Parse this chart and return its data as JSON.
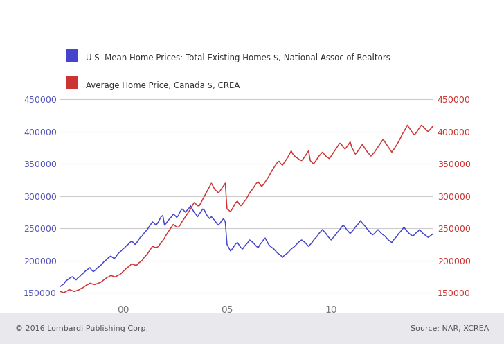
{
  "legend_us": "U.S. Mean Home Prices: Total Existing Homes $, National Assoc of Realtors",
  "legend_canada": "Average Home Price, Canada $, CREA",
  "footer_left": "© 2016 Lombardi Publishing Corp.",
  "footer_right": "Source: NAR, XCREA",
  "us_color": "#4444cc",
  "canada_color": "#cc3333",
  "background_color": "#ffffff",
  "footer_bg_color": "#e8e8ed",
  "grid_color": "#cccccc",
  "ylim": [
    140000,
    460000
  ],
  "yticks": [
    150000,
    200000,
    250000,
    300000,
    350000,
    400000,
    450000
  ],
  "left_tick_color": "#5555bb",
  "right_tick_color": "#cc3333",
  "xtick_labels": [
    "00",
    "05",
    "10"
  ],
  "xtick_positions": [
    36,
    96,
    156
  ],
  "us_data": [
    160000,
    162000,
    164000,
    168000,
    170000,
    172000,
    174000,
    175000,
    172000,
    170000,
    173000,
    175000,
    178000,
    180000,
    183000,
    185000,
    187000,
    189000,
    185000,
    183000,
    185000,
    188000,
    190000,
    192000,
    195000,
    198000,
    200000,
    203000,
    205000,
    207000,
    205000,
    203000,
    206000,
    210000,
    213000,
    215000,
    218000,
    220000,
    223000,
    225000,
    228000,
    230000,
    228000,
    225000,
    228000,
    232000,
    236000,
    238000,
    242000,
    245000,
    248000,
    252000,
    256000,
    260000,
    258000,
    255000,
    258000,
    263000,
    268000,
    270000,
    255000,
    258000,
    262000,
    265000,
    268000,
    272000,
    270000,
    267000,
    270000,
    276000,
    280000,
    278000,
    275000,
    278000,
    281000,
    285000,
    280000,
    275000,
    272000,
    268000,
    272000,
    276000,
    280000,
    278000,
    272000,
    268000,
    265000,
    268000,
    265000,
    262000,
    258000,
    255000,
    258000,
    262000,
    265000,
    260000,
    225000,
    220000,
    215000,
    218000,
    222000,
    226000,
    228000,
    224000,
    220000,
    218000,
    222000,
    225000,
    228000,
    232000,
    230000,
    228000,
    225000,
    222000,
    220000,
    225000,
    228000,
    232000,
    235000,
    230000,
    225000,
    222000,
    220000,
    218000,
    215000,
    212000,
    210000,
    208000,
    205000,
    208000,
    210000,
    212000,
    215000,
    218000,
    220000,
    222000,
    225000,
    228000,
    230000,
    232000,
    230000,
    228000,
    225000,
    222000,
    225000,
    228000,
    232000,
    235000,
    238000,
    242000,
    245000,
    248000,
    245000,
    242000,
    238000,
    235000,
    232000,
    235000,
    238000,
    242000,
    245000,
    248000,
    252000,
    255000,
    252000,
    248000,
    245000,
    242000,
    245000,
    248000,
    252000,
    255000,
    258000,
    262000,
    258000,
    255000,
    252000,
    248000,
    245000,
    242000,
    240000,
    242000,
    245000,
    248000,
    245000,
    242000,
    240000,
    238000,
    235000,
    232000,
    230000,
    228000,
    232000,
    235000,
    238000,
    242000,
    245000,
    248000,
    252000,
    248000,
    245000,
    242000,
    240000,
    238000,
    240000,
    243000,
    245000,
    248000,
    245000,
    242000,
    240000,
    238000,
    236000,
    238000,
    240000,
    242000
  ],
  "canada_data": [
    152000,
    151000,
    150000,
    152000,
    153000,
    155000,
    154000,
    153000,
    152000,
    153000,
    154000,
    155000,
    157000,
    158000,
    160000,
    162000,
    163000,
    165000,
    164000,
    163000,
    163000,
    164000,
    165000,
    166000,
    168000,
    170000,
    172000,
    174000,
    175000,
    177000,
    176000,
    175000,
    175000,
    177000,
    178000,
    180000,
    183000,
    185000,
    188000,
    190000,
    192000,
    195000,
    194000,
    193000,
    193000,
    196000,
    198000,
    200000,
    204000,
    207000,
    210000,
    214000,
    218000,
    222000,
    221000,
    220000,
    221000,
    224000,
    228000,
    231000,
    235000,
    240000,
    244000,
    248000,
    252000,
    256000,
    254000,
    252000,
    252000,
    255000,
    260000,
    264000,
    268000,
    272000,
    276000,
    280000,
    285000,
    290000,
    288000,
    285000,
    285000,
    290000,
    295000,
    300000,
    305000,
    310000,
    315000,
    320000,
    315000,
    310000,
    308000,
    305000,
    308000,
    312000,
    316000,
    320000,
    280000,
    278000,
    276000,
    280000,
    285000,
    290000,
    292000,
    288000,
    285000,
    288000,
    292000,
    295000,
    300000,
    305000,
    308000,
    312000,
    316000,
    320000,
    322000,
    318000,
    315000,
    318000,
    322000,
    326000,
    330000,
    335000,
    340000,
    344000,
    348000,
    352000,
    354000,
    350000,
    348000,
    352000,
    356000,
    360000,
    365000,
    370000,
    365000,
    362000,
    360000,
    358000,
    356000,
    355000,
    358000,
    362000,
    366000,
    370000,
    355000,
    352000,
    350000,
    354000,
    358000,
    362000,
    365000,
    368000,
    365000,
    362000,
    360000,
    358000,
    362000,
    366000,
    370000,
    374000,
    378000,
    382000,
    380000,
    376000,
    373000,
    376000,
    380000,
    384000,
    375000,
    370000,
    365000,
    368000,
    372000,
    376000,
    380000,
    376000,
    372000,
    368000,
    365000,
    362000,
    365000,
    368000,
    372000,
    376000,
    380000,
    384000,
    388000,
    384000,
    380000,
    376000,
    372000,
    368000,
    372000,
    376000,
    380000,
    385000,
    390000,
    396000,
    400000,
    405000,
    410000,
    406000,
    402000,
    398000,
    395000,
    398000,
    402000,
    406000,
    410000,
    408000,
    405000,
    402000,
    400000,
    403000,
    406000,
    410000
  ]
}
